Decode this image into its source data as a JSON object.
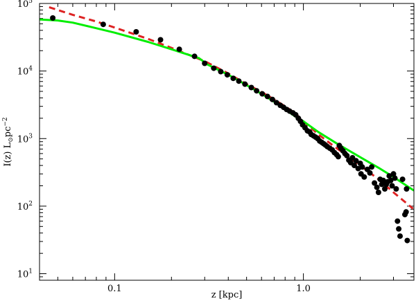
{
  "chart_data": {
    "type": "scatter",
    "title": "",
    "xlabel": "z [kpc]",
    "ylabel": {
      "base": "I(z) L",
      "sun_symbol": "⊙",
      "unit": "pc",
      "exponent": "−2"
    },
    "x_scale": "log",
    "y_scale": "log",
    "xlim": [
      0.04,
      3.85
    ],
    "ylim": [
      8,
      100000
    ],
    "x_ticks": [
      {
        "value": 0.1,
        "label": "0.1"
      },
      {
        "value": 1.0,
        "label": "1.0"
      }
    ],
    "y_ticks": [
      {
        "value": 10,
        "base": "10",
        "exp": "1"
      },
      {
        "value": 100,
        "base": "10",
        "exp": "2"
      },
      {
        "value": 1000,
        "base": "10",
        "exp": "3"
      },
      {
        "value": 10000,
        "base": "10",
        "exp": "4"
      },
      {
        "value": 100000,
        "base": "10",
        "exp": "5"
      }
    ],
    "grid": false,
    "legend": "none",
    "series": [
      {
        "kind": "points",
        "color": "#000000",
        "points": [
          [
            0.047,
            61000
          ],
          [
            0.087,
            49000
          ],
          [
            0.13,
            38000
          ],
          [
            0.175,
            29000
          ],
          [
            0.22,
            21000
          ],
          [
            0.265,
            16500
          ],
          [
            0.3,
            13000
          ],
          [
            0.335,
            11000
          ],
          [
            0.365,
            9800
          ],
          [
            0.395,
            8800
          ],
          [
            0.425,
            7800
          ],
          [
            0.455,
            7100
          ],
          [
            0.49,
            6400
          ],
          [
            0.53,
            5700
          ],
          [
            0.565,
            5100
          ],
          [
            0.605,
            4600
          ],
          [
            0.645,
            4200
          ],
          [
            0.685,
            3800
          ],
          [
            0.72,
            3400
          ],
          [
            0.755,
            3100
          ],
          [
            0.785,
            2900
          ],
          [
            0.815,
            2700
          ],
          [
            0.845,
            2550
          ],
          [
            0.88,
            2400
          ],
          [
            0.91,
            2250
          ],
          [
            0.94,
            2000
          ],
          [
            0.965,
            1800
          ],
          [
            0.99,
            1600
          ],
          [
            1.02,
            1450
          ],
          [
            1.05,
            1300
          ],
          [
            1.08,
            1250
          ],
          [
            1.1,
            1150
          ],
          [
            1.13,
            1100
          ],
          [
            1.16,
            1050
          ],
          [
            1.19,
            1000
          ],
          [
            1.22,
            920
          ],
          [
            1.25,
            880
          ],
          [
            1.28,
            840
          ],
          [
            1.31,
            800
          ],
          [
            1.34,
            760
          ],
          [
            1.38,
            720
          ],
          [
            1.42,
            680
          ],
          [
            1.46,
            620
          ],
          [
            1.5,
            580
          ],
          [
            1.53,
            540
          ],
          [
            1.55,
            790
          ],
          [
            1.58,
            720
          ],
          [
            1.62,
            660
          ],
          [
            1.66,
            600
          ],
          [
            1.7,
            560
          ],
          [
            1.74,
            480
          ],
          [
            1.78,
            440
          ],
          [
            1.82,
            520
          ],
          [
            1.86,
            400
          ],
          [
            1.9,
            470
          ],
          [
            1.95,
            360
          ],
          [
            2.0,
            430
          ],
          [
            2.02,
            300
          ],
          [
            2.05,
            380
          ],
          [
            2.1,
            270
          ],
          [
            2.18,
            350
          ],
          [
            2.25,
            310
          ],
          [
            2.3,
            380
          ],
          [
            2.38,
            220
          ],
          [
            2.45,
            190
          ],
          [
            2.5,
            160
          ],
          [
            2.55,
            250
          ],
          [
            2.6,
            210
          ],
          [
            2.65,
            240
          ],
          [
            2.7,
            180
          ],
          [
            2.75,
            210
          ],
          [
            2.8,
            230
          ],
          [
            2.85,
            280
          ],
          [
            2.9,
            240
          ],
          [
            2.95,
            200
          ],
          [
            3.0,
            300
          ],
          [
            3.05,
            260
          ],
          [
            3.1,
            180
          ],
          [
            3.15,
            60
          ],
          [
            3.2,
            46
          ],
          [
            3.25,
            36
          ],
          [
            3.35,
            250
          ],
          [
            3.45,
            75
          ],
          [
            3.5,
            82
          ],
          [
            3.52,
            180
          ],
          [
            3.55,
            31
          ]
        ]
      },
      {
        "kind": "line",
        "style": "dashed",
        "color": "#dd2222",
        "points": [
          [
            0.045,
            88000
          ],
          [
            0.06,
            68000
          ],
          [
            0.08,
            54000
          ],
          [
            0.1,
            44000
          ],
          [
            0.15,
            30000
          ],
          [
            0.2,
            22000
          ],
          [
            0.3,
            14000
          ],
          [
            0.4,
            9200
          ],
          [
            0.5,
            6400
          ],
          [
            0.6,
            4900
          ],
          [
            0.7,
            3800
          ],
          [
            0.8,
            3000
          ],
          [
            0.9,
            2400
          ],
          [
            1.0,
            1800
          ],
          [
            1.2,
            1150
          ],
          [
            1.5,
            720
          ],
          [
            2.0,
            400
          ],
          [
            2.5,
            250
          ],
          [
            3.0,
            160
          ],
          [
            3.8,
            92
          ]
        ]
      },
      {
        "kind": "line",
        "style": "solid",
        "color": "#00ee00",
        "points": [
          [
            0.04,
            58000
          ],
          [
            0.05,
            56000
          ],
          [
            0.06,
            52000
          ],
          [
            0.08,
            43000
          ],
          [
            0.1,
            37000
          ],
          [
            0.15,
            27000
          ],
          [
            0.2,
            21000
          ],
          [
            0.28,
            15500
          ],
          [
            0.31,
            12500
          ],
          [
            0.4,
            8800
          ],
          [
            0.5,
            6200
          ],
          [
            0.6,
            4600
          ],
          [
            0.7,
            3500
          ],
          [
            0.8,
            2700
          ],
          [
            0.9,
            2150
          ],
          [
            1.0,
            1800
          ],
          [
            1.2,
            1250
          ],
          [
            1.5,
            850
          ],
          [
            2.0,
            530
          ],
          [
            2.5,
            370
          ],
          [
            3.0,
            270
          ],
          [
            3.85,
            170
          ]
        ]
      }
    ]
  }
}
